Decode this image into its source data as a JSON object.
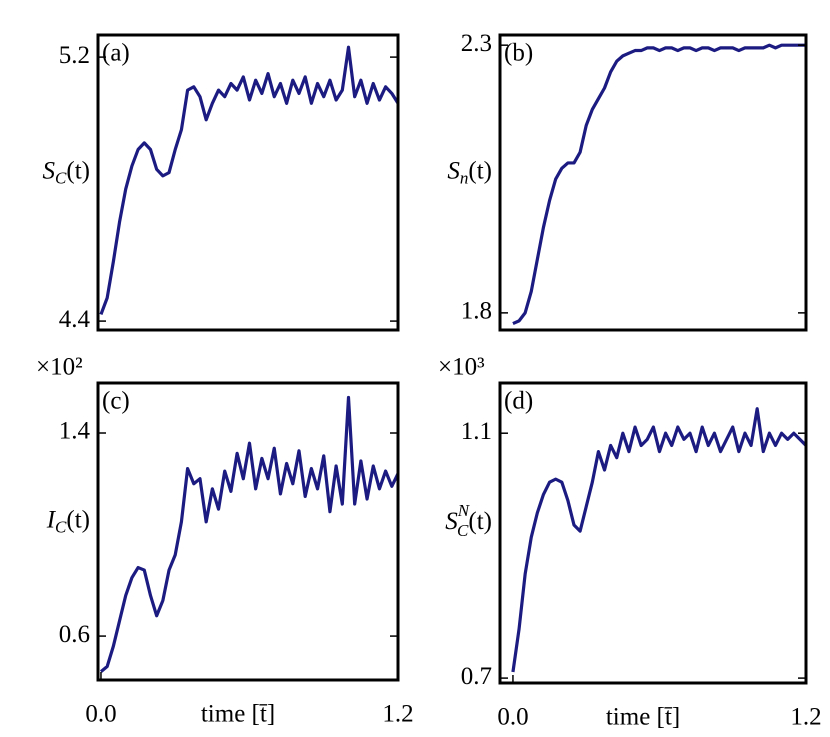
{
  "chart_data": [
    {
      "type": "line",
      "annotation": "(a)",
      "color": "#1b1b82",
      "ylabel": {
        "base": "S",
        "sub": "C",
        "arg": "(t)"
      },
      "xlim": [
        -0.012,
        1.2
      ],
      "ylim": [
        4.373,
        5.267
      ],
      "yticks": [
        5.2,
        4.4
      ],
      "x": [
        0,
        0.025,
        0.05,
        0.075,
        0.1,
        0.125,
        0.15,
        0.175,
        0.2,
        0.225,
        0.25,
        0.275,
        0.3,
        0.325,
        0.35,
        0.375,
        0.4,
        0.425,
        0.45,
        0.475,
        0.5,
        0.525,
        0.55,
        0.575,
        0.6,
        0.625,
        0.65,
        0.675,
        0.7,
        0.725,
        0.75,
        0.775,
        0.8,
        0.825,
        0.85,
        0.875,
        0.9,
        0.925,
        0.95,
        0.975,
        1.0,
        1.025,
        1.05,
        1.075,
        1.1,
        1.125,
        1.15,
        1.175,
        1.2
      ],
      "values": [
        4.42,
        4.47,
        4.58,
        4.7,
        4.8,
        4.87,
        4.92,
        4.94,
        4.92,
        4.86,
        4.84,
        4.85,
        4.92,
        4.98,
        5.1,
        5.11,
        5.08,
        5.01,
        5.06,
        5.1,
        5.08,
        5.12,
        5.1,
        5.14,
        5.07,
        5.13,
        5.09,
        5.15,
        5.08,
        5.12,
        5.06,
        5.13,
        5.09,
        5.14,
        5.06,
        5.12,
        5.08,
        5.13,
        5.07,
        5.1,
        5.23,
        5.08,
        5.13,
        5.06,
        5.12,
        5.07,
        5.11,
        5.09,
        5.06
      ]
    },
    {
      "type": "line",
      "annotation": "(b)",
      "color": "#1b1b82",
      "ylabel": {
        "base": "S",
        "sub": "n",
        "arg": "(t)"
      },
      "xlim": [
        -0.053,
        1.2
      ],
      "ylim": [
        1.768,
        2.319
      ],
      "yticks": [
        2.3,
        1.8
      ],
      "x": [
        0,
        0.025,
        0.05,
        0.075,
        0.1,
        0.125,
        0.15,
        0.175,
        0.2,
        0.225,
        0.25,
        0.275,
        0.3,
        0.325,
        0.35,
        0.375,
        0.4,
        0.425,
        0.45,
        0.475,
        0.5,
        0.525,
        0.55,
        0.575,
        0.6,
        0.625,
        0.65,
        0.675,
        0.7,
        0.725,
        0.75,
        0.775,
        0.8,
        0.825,
        0.85,
        0.875,
        0.9,
        0.925,
        0.95,
        0.975,
        1.0,
        1.025,
        1.05,
        1.075,
        1.1,
        1.125,
        1.15,
        1.175,
        1.2
      ],
      "values": [
        1.78,
        1.785,
        1.8,
        1.84,
        1.9,
        1.96,
        2.01,
        2.05,
        2.07,
        2.08,
        2.08,
        2.1,
        2.15,
        2.18,
        2.2,
        2.22,
        2.25,
        2.27,
        2.28,
        2.285,
        2.29,
        2.29,
        2.295,
        2.295,
        2.29,
        2.295,
        2.295,
        2.29,
        2.295,
        2.295,
        2.29,
        2.295,
        2.295,
        2.29,
        2.295,
        2.295,
        2.295,
        2.29,
        2.295,
        2.295,
        2.295,
        2.295,
        2.3,
        2.295,
        2.3,
        2.3,
        2.3,
        2.3,
        2.3
      ]
    },
    {
      "type": "line",
      "annotation": "(c)",
      "offset_text": "×10²",
      "color": "#1b1b82",
      "ylabel": {
        "base": "I",
        "sub": "C",
        "arg": "(t)"
      },
      "xlabel": "time [t̄]",
      "xlim": [
        -0.012,
        1.2
      ],
      "ylim": [
        0.427,
        1.597
      ],
      "yticks": [
        1.4,
        0.6
      ],
      "xticks": [
        {
          "value": 0,
          "label": "0.0"
        },
        1.2
      ],
      "x": [
        0,
        0.025,
        0.05,
        0.075,
        0.1,
        0.125,
        0.15,
        0.175,
        0.2,
        0.225,
        0.25,
        0.275,
        0.3,
        0.325,
        0.35,
        0.375,
        0.4,
        0.425,
        0.45,
        0.475,
        0.5,
        0.525,
        0.55,
        0.575,
        0.6,
        0.625,
        0.65,
        0.675,
        0.7,
        0.725,
        0.75,
        0.775,
        0.8,
        0.825,
        0.85,
        0.875,
        0.9,
        0.925,
        0.95,
        0.975,
        1.0,
        1.025,
        1.05,
        1.075,
        1.1,
        1.125,
        1.15,
        1.175,
        1.2
      ],
      "values": [
        0.46,
        0.48,
        0.56,
        0.66,
        0.76,
        0.83,
        0.87,
        0.86,
        0.76,
        0.68,
        0.74,
        0.86,
        0.92,
        1.05,
        1.26,
        1.2,
        1.22,
        1.05,
        1.18,
        1.1,
        1.25,
        1.17,
        1.32,
        1.22,
        1.36,
        1.18,
        1.3,
        1.22,
        1.34,
        1.16,
        1.28,
        1.2,
        1.33,
        1.15,
        1.26,
        1.18,
        1.31,
        1.09,
        1.27,
        1.12,
        1.54,
        1.12,
        1.29,
        1.14,
        1.27,
        1.18,
        1.25,
        1.19,
        1.24
      ]
    },
    {
      "type": "line",
      "annotation": "(d)",
      "offset_text": "×10³",
      "color": "#1b1b82",
      "ylabel": {
        "base": "S",
        "sub": "C",
        "sup": "N",
        "arg": "(t)"
      },
      "xlabel": "time [t̄]",
      "xlim": [
        -0.053,
        1.2
      ],
      "ylim": [
        0.692,
        1.182
      ],
      "yticks": [
        1.1,
        0.7
      ],
      "xticks": [
        {
          "value": 0,
          "label": "0.0"
        },
        1.2
      ],
      "x": [
        0,
        0.025,
        0.05,
        0.075,
        0.1,
        0.125,
        0.15,
        0.175,
        0.2,
        0.225,
        0.25,
        0.275,
        0.3,
        0.325,
        0.35,
        0.375,
        0.4,
        0.425,
        0.45,
        0.475,
        0.5,
        0.525,
        0.55,
        0.575,
        0.6,
        0.625,
        0.65,
        0.675,
        0.7,
        0.725,
        0.75,
        0.775,
        0.8,
        0.825,
        0.85,
        0.875,
        0.9,
        0.925,
        0.95,
        0.975,
        1.0,
        1.025,
        1.05,
        1.075,
        1.1,
        1.125,
        1.15,
        1.175,
        1.2
      ],
      "values": [
        0.71,
        0.78,
        0.87,
        0.93,
        0.97,
        1.0,
        1.02,
        1.025,
        1.02,
        0.99,
        0.95,
        0.94,
        0.98,
        1.02,
        1.07,
        1.04,
        1.08,
        1.06,
        1.1,
        1.07,
        1.11,
        1.08,
        1.09,
        1.11,
        1.07,
        1.1,
        1.08,
        1.11,
        1.09,
        1.1,
        1.07,
        1.11,
        1.08,
        1.1,
        1.07,
        1.09,
        1.11,
        1.07,
        1.1,
        1.08,
        1.14,
        1.07,
        1.1,
        1.08,
        1.1,
        1.09,
        1.1,
        1.09,
        1.08
      ]
    }
  ]
}
